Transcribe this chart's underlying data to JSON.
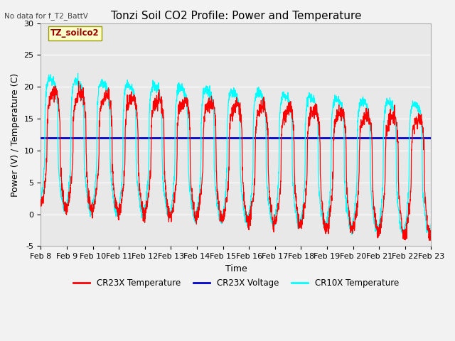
{
  "title": "Tonzi Soil CO2 Profile: Power and Temperature",
  "no_data_text": "No data for f_T2_BattV",
  "ylabel": "Power (V) / Temperature (C)",
  "xlabel": "Time",
  "ylim": [
    -5,
    30
  ],
  "yticks": [
    -5,
    0,
    5,
    10,
    15,
    20,
    25,
    30
  ],
  "x_tick_labels": [
    "Feb 8",
    "Feb 9",
    "Feb 10",
    "Feb 11",
    "Feb 12",
    "Feb 13",
    "Feb 14",
    "Feb 15",
    "Feb 16",
    "Feb 17",
    "Feb 18",
    "Feb 19",
    "Feb 20",
    "Feb 21",
    "Feb 22",
    "Feb 23"
  ],
  "voltage_value": 12.0,
  "legend_entries": [
    {
      "label": "CR23X Temperature",
      "color": "#ff0000"
    },
    {
      "label": "CR23X Voltage",
      "color": "#0000cd"
    },
    {
      "label": "CR10X Temperature",
      "color": "#00ffff"
    }
  ],
  "legend_box_label": "TZ_soilco2",
  "bg_color": "#e8e8e8",
  "grid_color": "#ffffff",
  "title_fontsize": 11,
  "label_fontsize": 9,
  "tick_fontsize": 8
}
